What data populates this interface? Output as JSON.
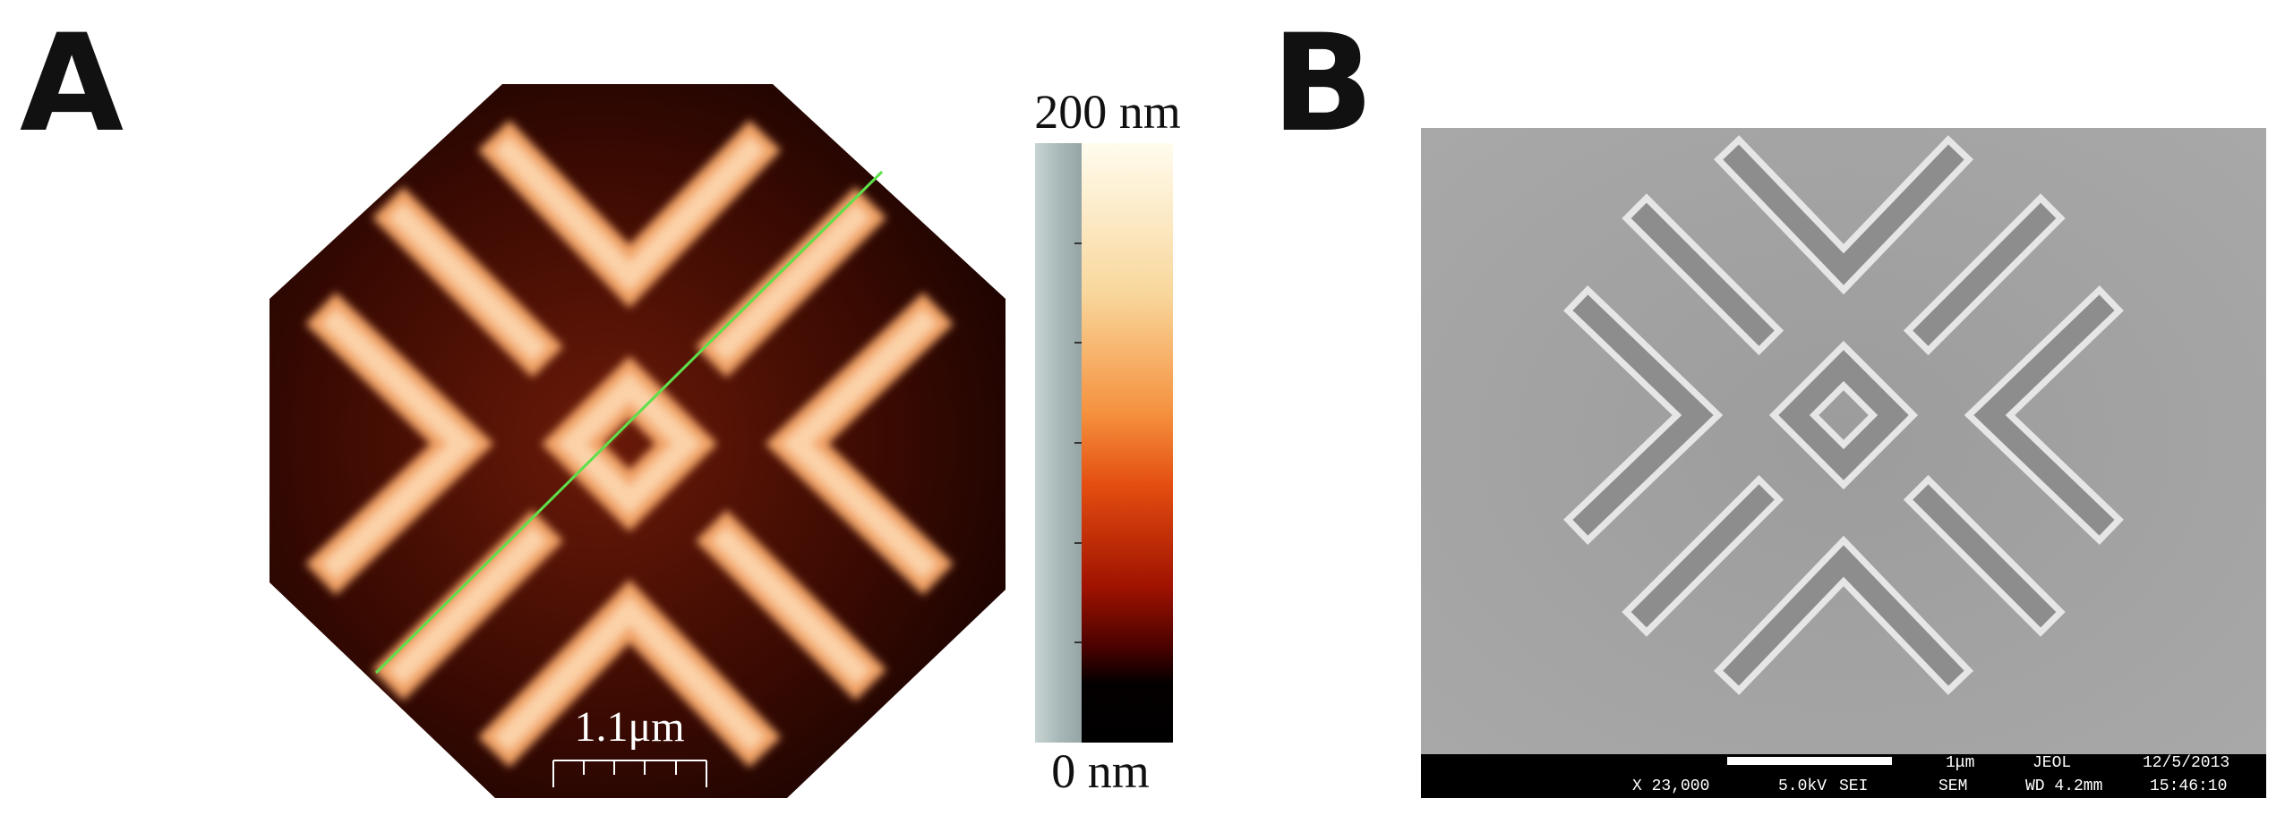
{
  "panel_a": {
    "label": "A",
    "colorbar_max": "200 nm",
    "colorbar_min": "0 nm",
    "scale_bar": "1.1μm"
  },
  "panel_b": {
    "label": "B",
    "info_top": [
      "1μm",
      "JEOL",
      "12/5/2013"
    ],
    "info_bottom": [
      "X 23,000",
      "5.0kV",
      "SEI",
      "SEM",
      "WD 4.2mm",
      "15:46:10"
    ]
  }
}
